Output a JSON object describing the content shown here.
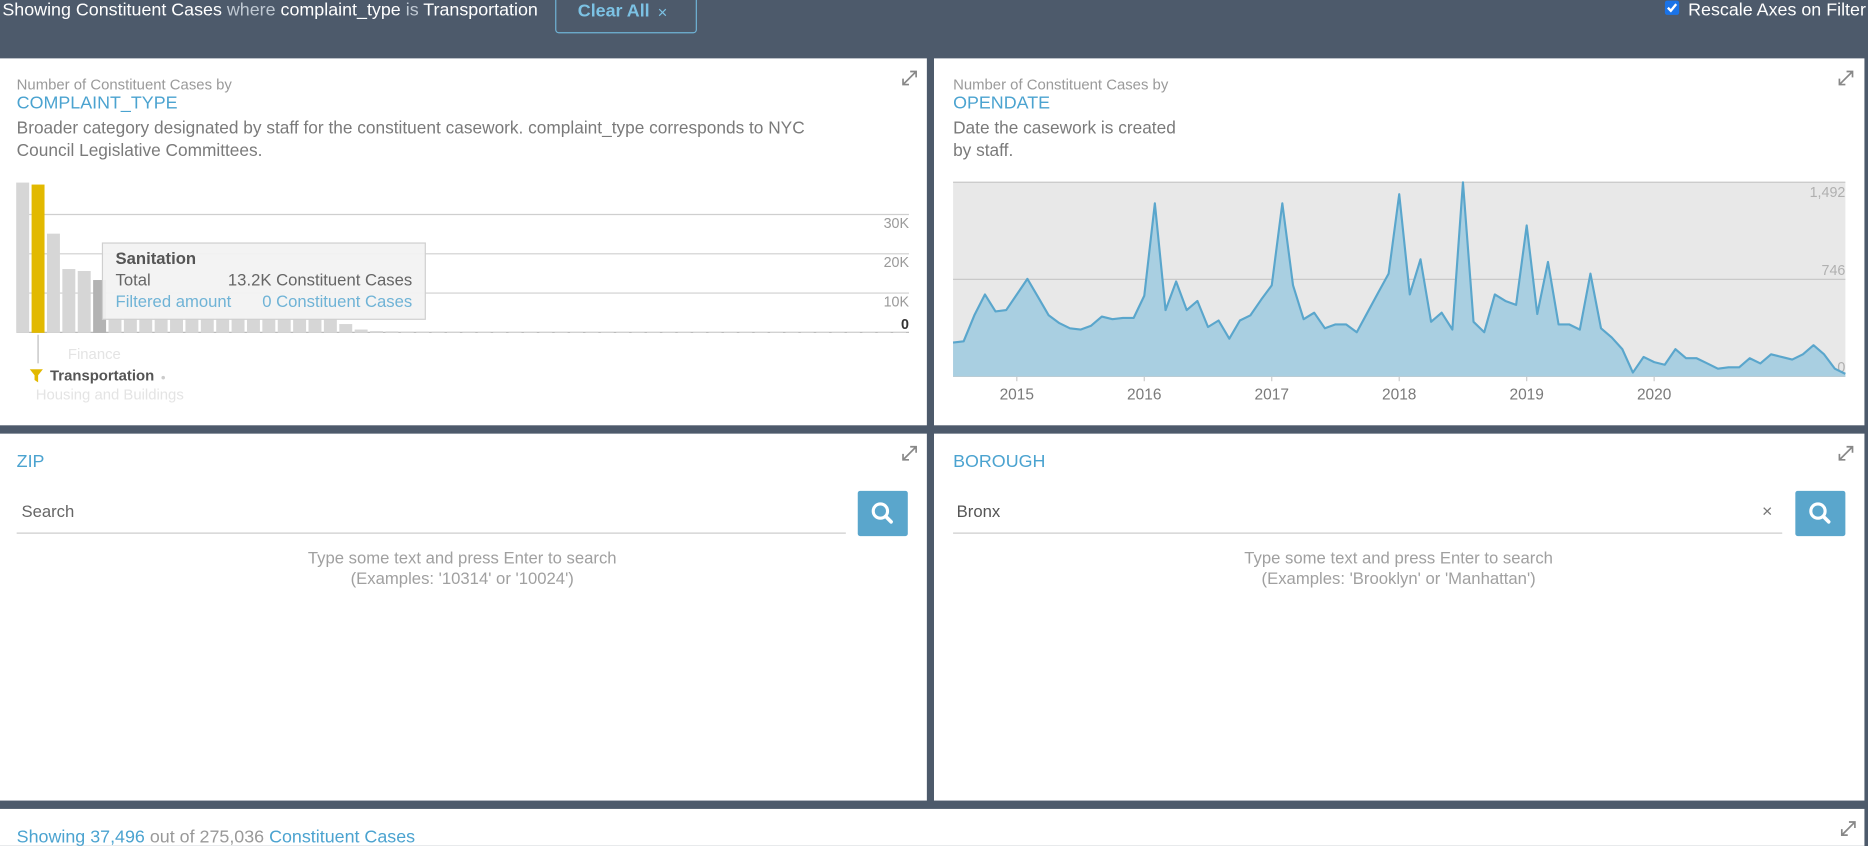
{
  "filter_bar": {
    "showing": "Showing Constituent Cases",
    "where": "where",
    "field": "complaint_type",
    "is": "is",
    "value": "Transportation",
    "clear_button": "Clear All",
    "clear_icon": "×",
    "rescale": "Rescale Axes on Filter"
  },
  "chart_data": [
    {
      "type": "bar",
      "subtitle": "Number of Constituent Cases by",
      "title": "COMPLAINT_TYPE",
      "description": [
        "Broader category designated by staff for the constituent casework. complaint_type corresponds to NYC",
        "Council Legislative Committees."
      ],
      "values": [
        38000,
        37496,
        25000,
        16000,
        15500,
        13200,
        3400,
        3400,
        3400,
        3400,
        3400,
        3400,
        3400,
        3400,
        3400,
        3300,
        3300,
        3300,
        3300,
        3200,
        3200,
        2000,
        600,
        200,
        150,
        100,
        100,
        100,
        80,
        80,
        60,
        60,
        50,
        50,
        40,
        40,
        40,
        30,
        30,
        30,
        20,
        20,
        20,
        20,
        20,
        10,
        10,
        10,
        10,
        10,
        10,
        10,
        10,
        10,
        10,
        10,
        10,
        10
      ],
      "color": "#d6d6d6",
      "highlight_index": 1,
      "highlight_color": "#e2b900",
      "hover_index": 5,
      "hover_color": "#b3b3b3",
      "ylim": [
        0,
        38200
      ],
      "yticks": [
        0,
        {
          "value": 10000,
          "label": "10K"
        },
        {
          "value": 20000,
          "label": "20K"
        },
        {
          "value": 30000,
          "label": "30K"
        }
      ],
      "grid": true,
      "selection_list": {
        "items": [
          "Finance",
          "Transportation",
          "Housing and Buildings"
        ],
        "selected": 1
      },
      "tooltip": {
        "title": "Sanitation",
        "total_label": "Total",
        "total_value": "13.2K Constituent Cases",
        "filtered_label": "Filtered amount",
        "filtered_value": "0 Constituent Cases"
      }
    },
    {
      "type": "line",
      "subtitle": "Number of Constituent Cases by",
      "title": "OPENDATE",
      "description": [
        "Date the casework is created",
        "by staff."
      ],
      "x": [
        2014.5,
        2014.583,
        2014.667,
        2014.75,
        2014.833,
        2014.917,
        2015,
        2015.083,
        2015.167,
        2015.25,
        2015.333,
        2015.417,
        2015.5,
        2015.583,
        2015.667,
        2015.75,
        2015.833,
        2015.917,
        2016,
        2016.083,
        2016.167,
        2016.25,
        2016.333,
        2016.417,
        2016.5,
        2016.583,
        2016.667,
        2016.75,
        2016.833,
        2016.917,
        2017,
        2017.083,
        2017.167,
        2017.25,
        2017.333,
        2017.417,
        2017.5,
        2017.583,
        2017.667,
        2017.75,
        2017.833,
        2017.917,
        2018,
        2018.083,
        2018.167,
        2018.25,
        2018.333,
        2018.417,
        2018.5,
        2018.583,
        2018.667,
        2018.75,
        2018.833,
        2018.917,
        2019,
        2019.083,
        2019.167,
        2019.25,
        2019.333,
        2019.417,
        2019.5,
        2019.583,
        2019.667,
        2019.75,
        2019.833,
        2019.917,
        2020,
        2020.083,
        2020.167,
        2020.25,
        2020.333,
        2020.417,
        2020.5,
        2020.583,
        2020.667,
        2020.75,
        2020.833,
        2020.917,
        2021,
        2021.083,
        2021.167,
        2021.25,
        2021.333,
        2021.417,
        2021.5
      ],
      "values": [
        260,
        270,
        470,
        630,
        500,
        510,
        630,
        750,
        610,
        470,
        410,
        370,
        360,
        390,
        460,
        440,
        450,
        450,
        620,
        1330,
        510,
        730,
        510,
        580,
        380,
        430,
        290,
        430,
        470,
        590,
        700,
        1330,
        700,
        440,
        490,
        370,
        400,
        400,
        340,
        490,
        640,
        790,
        1400,
        630,
        900,
        420,
        490,
        360,
        1492,
        420,
        340,
        630,
        580,
        550,
        1160,
        480,
        880,
        400,
        400,
        360,
        790,
        370,
        300,
        210,
        30,
        150,
        110,
        90,
        210,
        140,
        140,
        100,
        60,
        70,
        70,
        140,
        100,
        170,
        150,
        130,
        170,
        240,
        170,
        60,
        20
      ],
      "color": "#5aa6cc",
      "fill": "#a9cfe1",
      "background": "#e8e8e8",
      "xlim": [
        2014.5,
        2021.5
      ],
      "xticks": [
        2015,
        2016,
        2017,
        2018,
        2019,
        2020
      ],
      "ylim": [
        0,
        1492
      ],
      "yticks": [
        0,
        746,
        {
          "value": 1492,
          "label": "1,492"
        }
      ],
      "grid": true
    }
  ],
  "search_panels": [
    {
      "title": "ZIP",
      "placeholder": "Search",
      "hint": [
        "Type some text and press Enter to search",
        "(Examples: '10314' or '10024')"
      ]
    },
    {
      "title": "BOROUGH",
      "input_value": "Bronx",
      "clear_icon": "×",
      "hint": [
        "Type some text and press Enter to search",
        "(Examples: 'Brooklyn' or 'Manhattan')"
      ]
    }
  ],
  "table_panel": {
    "showing": "Showing 37,496",
    "out_of": "out of 275,036",
    "unit": "Constituent Cases"
  }
}
